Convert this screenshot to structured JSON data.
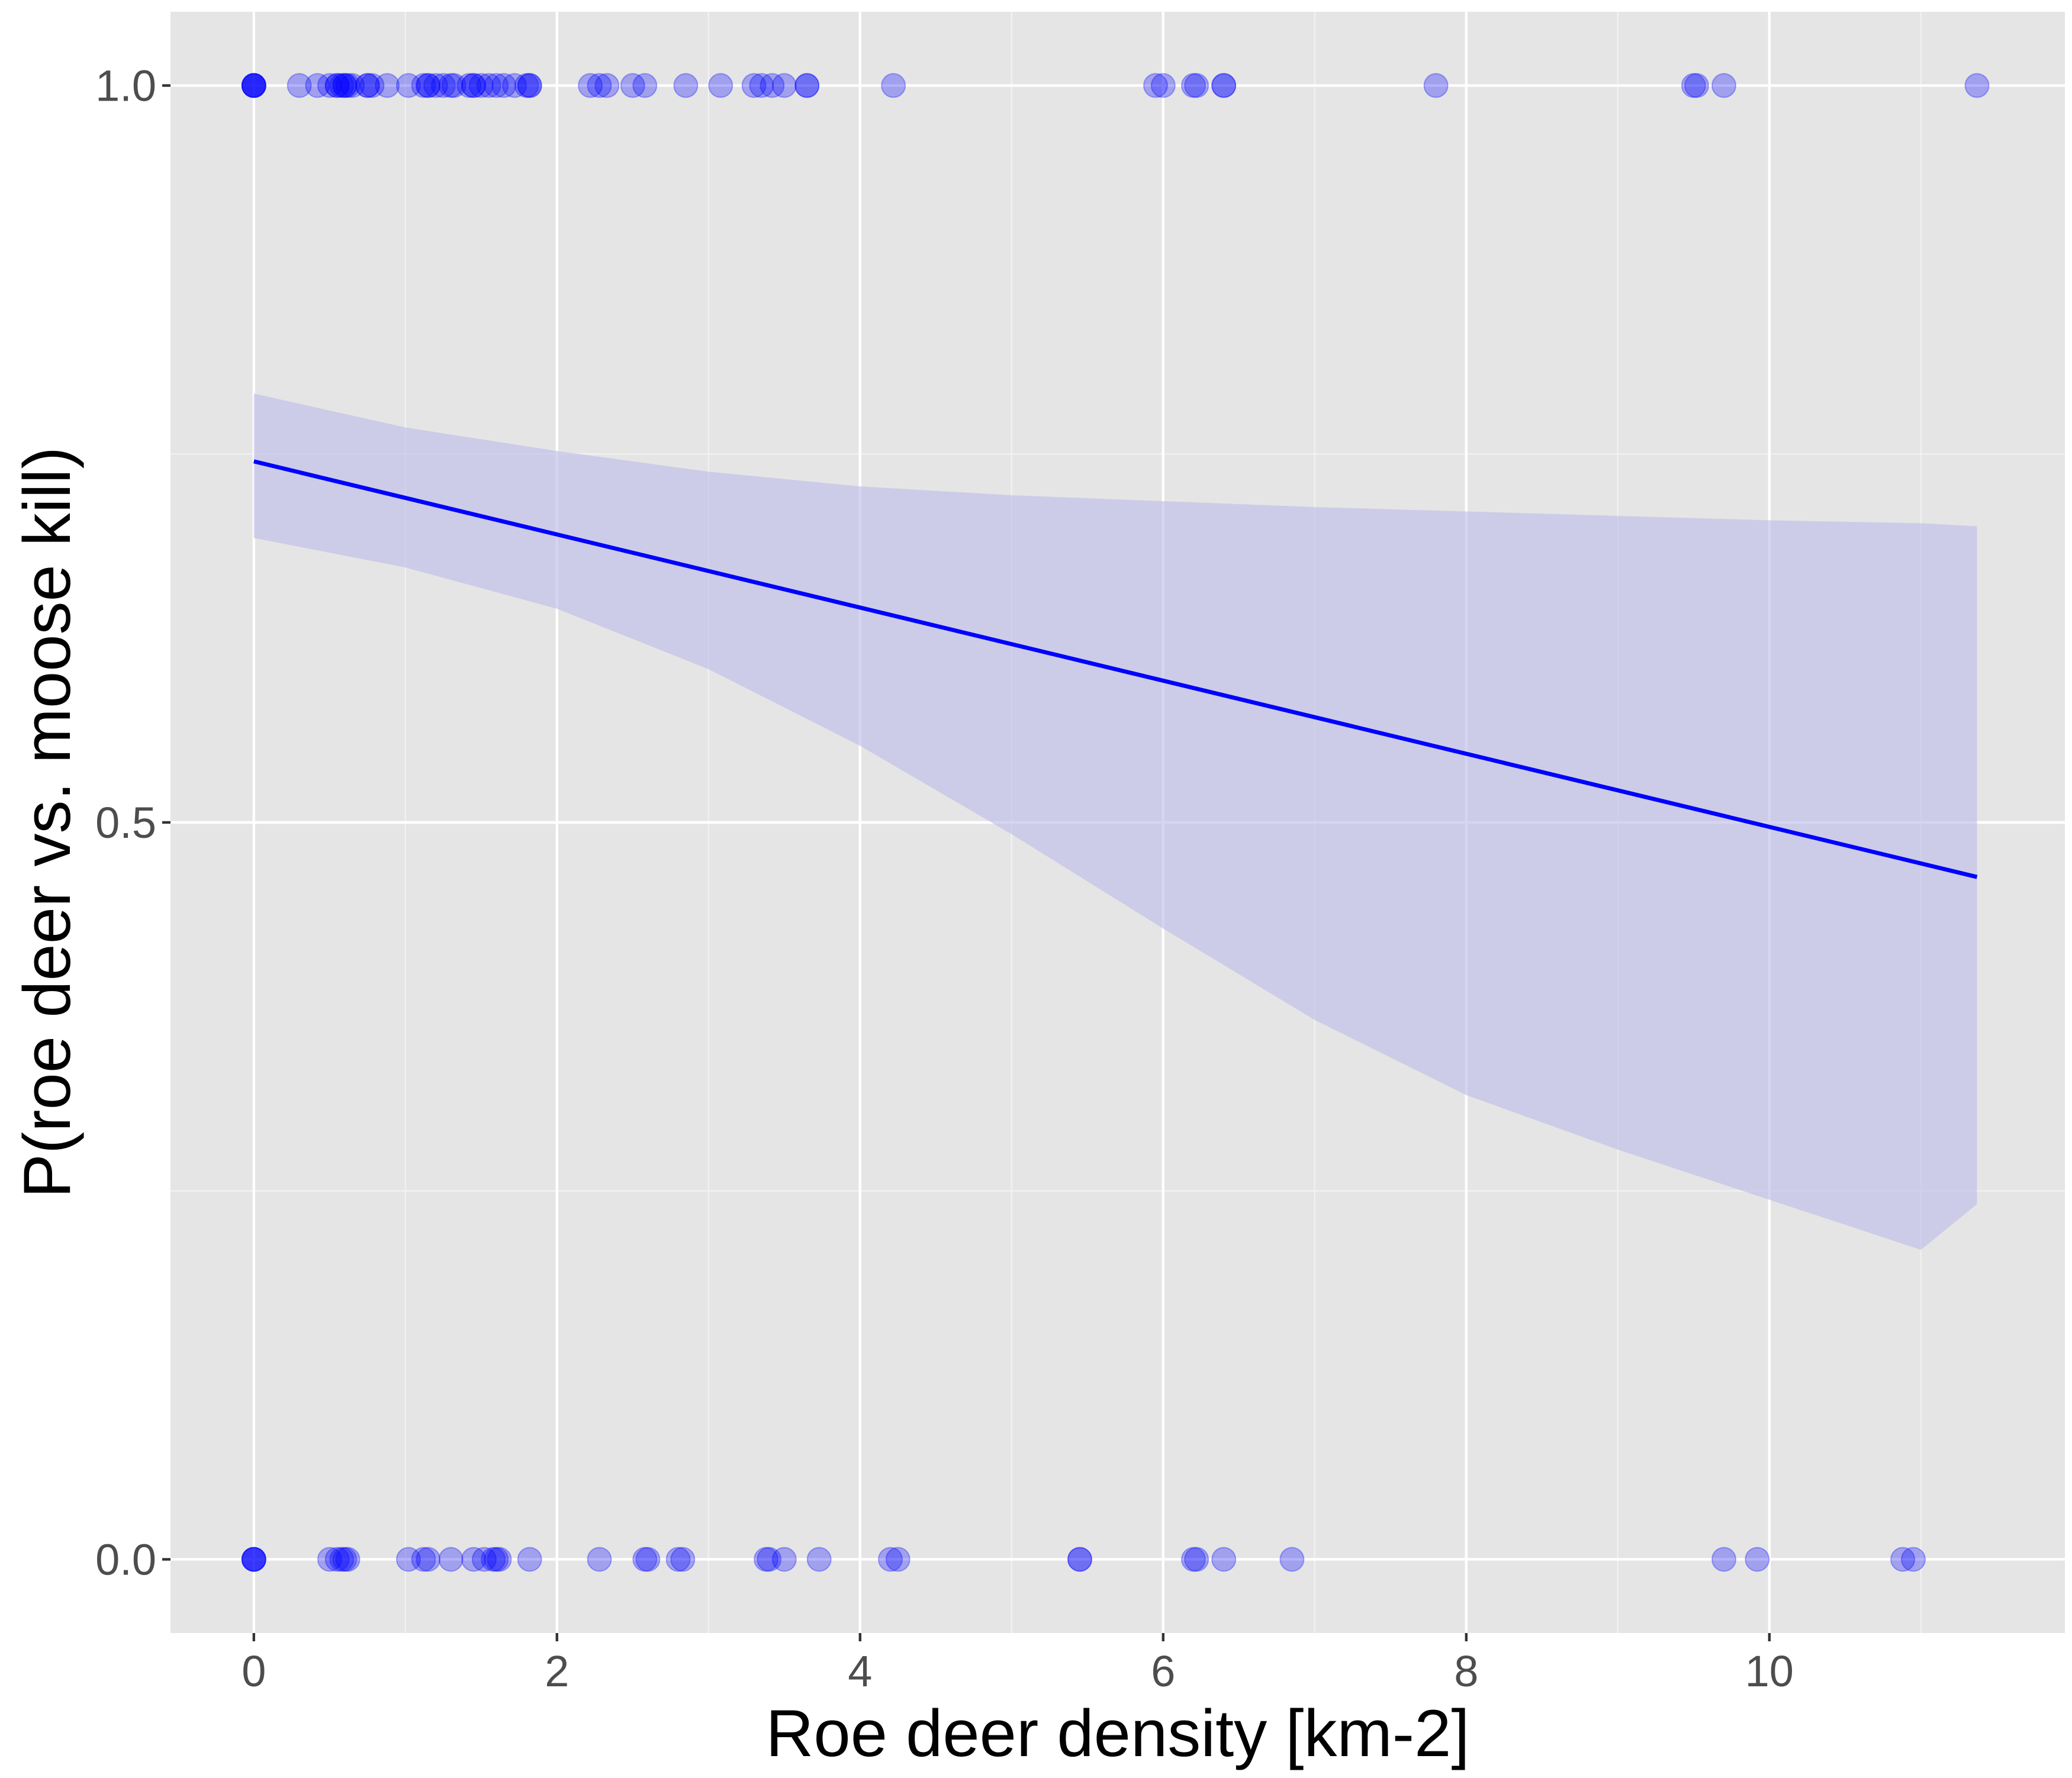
{
  "colors": {
    "panel_background": "#E5E5E5",
    "grid_major": "#FFFFFF",
    "grid_minor": "#F2F2F2",
    "point_fill": "#0000FF",
    "line": "#0000FF",
    "ribbon": "#BFBFEA",
    "tick_text": "#4D4D4D",
    "axis_title_text": "#000000"
  },
  "chart_data": {
    "type": "scatter",
    "title": "",
    "xlabel": "Roe deer density [km-2]",
    "ylabel": "P(roe deer vs. moose kill)",
    "xlim": [
      -0.55,
      11.95
    ],
    "ylim": [
      -0.05,
      1.05
    ],
    "x_ticks": [
      0,
      2,
      4,
      6,
      8,
      10
    ],
    "x_tick_labels": [
      "0",
      "2",
      "4",
      "6",
      "8",
      "10"
    ],
    "y_ticks": [
      0.0,
      0.5,
      1.0
    ],
    "y_tick_labels": [
      "0.0",
      "0.5",
      "1.0"
    ],
    "x_minor_ticks": [
      1,
      3,
      5,
      7,
      9,
      11
    ],
    "y_minor_ticks": [
      0.25,
      0.75
    ],
    "grid": true,
    "legend": "none",
    "point_alpha": 0.3,
    "series": [
      {
        "type": "scatter",
        "points_y1_x": [
          0,
          0,
          0,
          0,
          0,
          0.3,
          0.42,
          0.5,
          0.55,
          0.55,
          0.58,
          0.6,
          0.6,
          0.62,
          0.65,
          0.75,
          0.75,
          0.78,
          0.88,
          1.02,
          1.12,
          1.15,
          1.15,
          1.2,
          1.25,
          1.3,
          1.32,
          1.42,
          1.45,
          1.45,
          1.5,
          1.55,
          1.6,
          1.65,
          1.72,
          1.8,
          1.82,
          1.82,
          2.22,
          2.28,
          2.33,
          2.5,
          2.58,
          2.85,
          3.08,
          3.3,
          3.35,
          3.42,
          3.5,
          3.65,
          3.65,
          4.22,
          5.95,
          6.0,
          6.2,
          6.22,
          6.4,
          6.4,
          7.8,
          9.5,
          9.52,
          9.7,
          11.37
        ],
        "points_y0_x": [
          0,
          0,
          0,
          0,
          0.5,
          0.55,
          0.58,
          0.6,
          0.62,
          1.02,
          1.12,
          1.15,
          1.3,
          1.45,
          1.52,
          1.58,
          1.6,
          1.62,
          1.82,
          2.28,
          2.58,
          2.6,
          2.8,
          2.83,
          3.38,
          3.4,
          3.5,
          3.73,
          4.2,
          4.25,
          5.45,
          5.45,
          6.2,
          6.22,
          6.4,
          6.85,
          9.7,
          9.92,
          10.88,
          10.95
        ]
      },
      {
        "type": "line",
        "x": [
          0,
          11.37
        ],
        "y": [
          0.745,
          0.463
        ]
      },
      {
        "type": "area",
        "x": [
          0,
          1,
          2,
          3,
          4,
          5,
          6,
          7,
          8,
          9,
          10,
          11,
          11.37
        ],
        "lower": [
          0.693,
          0.673,
          0.645,
          0.604,
          0.552,
          0.492,
          0.428,
          0.366,
          0.315,
          0.278,
          0.244,
          0.21,
          0.241
        ],
        "upper": [
          0.791,
          0.768,
          0.752,
          0.738,
          0.728,
          0.722,
          0.718,
          0.714,
          0.711,
          0.708,
          0.705,
          0.703,
          0.701
        ]
      }
    ]
  }
}
